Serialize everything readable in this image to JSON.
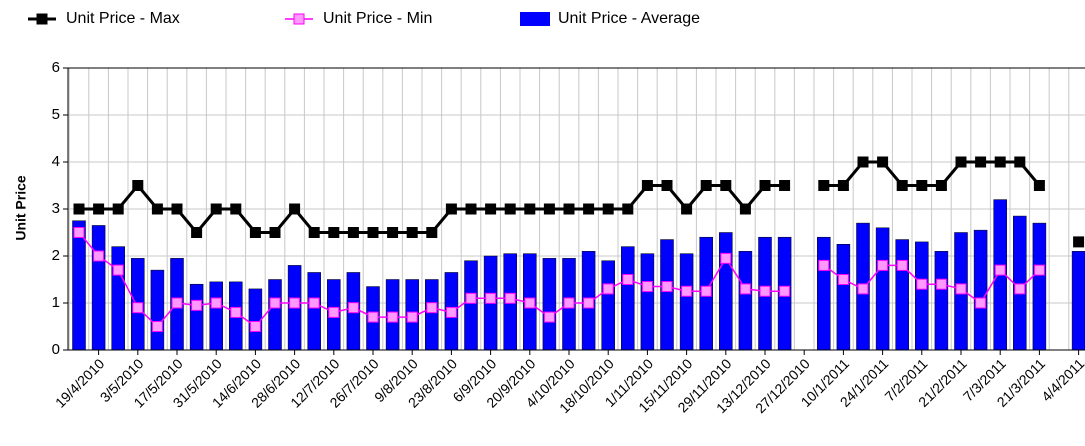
{
  "chart_data": {
    "type": "bar-line",
    "y_label": "Unit Price",
    "categories": [
      null,
      "19/4/2010",
      null,
      "3/5/2010",
      null,
      "17/5/2010",
      null,
      "31/5/2010",
      null,
      "14/6/2010",
      null,
      "28/6/2010",
      null,
      "12/7/2010",
      null,
      "26/7/2010",
      null,
      "9/8/2010",
      null,
      "23/8/2010",
      null,
      "6/9/2010",
      null,
      "20/9/2010",
      null,
      "4/10/2010",
      null,
      "18/10/2010",
      null,
      "1/11/2010",
      null,
      "15/11/2010",
      null,
      "29/11/2010",
      null,
      "13/12/2010",
      null,
      "27/12/2010",
      null,
      "10/1/2011",
      null,
      "24/1/2011",
      null,
      "7/2/2011",
      null,
      "21/2/2011",
      null,
      "7/3/2011",
      null,
      "21/3/2011",
      null,
      "4/4/2011"
    ],
    "series": [
      {
        "name": "Unit Price - Max",
        "kind": "line",
        "color": "#000000",
        "marker_fill": "#000000",
        "values": [
          3,
          3,
          3,
          3.5,
          3,
          3,
          2.5,
          3,
          3,
          2.5,
          2.5,
          3,
          2.5,
          2.5,
          2.5,
          2.5,
          2.5,
          2.5,
          2.5,
          3,
          3,
          3,
          3,
          3,
          3,
          3,
          3,
          3,
          3,
          3.5,
          3.5,
          3,
          3.5,
          3.5,
          3,
          3.5,
          3.5,
          null,
          3.5,
          3.5,
          4,
          4,
          3.5,
          3.5,
          3.5,
          4,
          4,
          4,
          4,
          3.5,
          null,
          2.3
        ]
      },
      {
        "name": "Unit Price - Min",
        "kind": "line",
        "color": "#ff00ff",
        "marker_fill": "#ff99ff",
        "values": [
          2.5,
          2,
          1.7,
          0.9,
          0.5,
          1,
          0.95,
          1,
          0.8,
          0.5,
          1,
          1,
          1,
          0.8,
          0.9,
          0.7,
          0.7,
          0.7,
          0.9,
          0.8,
          1.1,
          1.1,
          1.1,
          1,
          0.7,
          1,
          1,
          1.3,
          1.5,
          1.35,
          1.35,
          1.25,
          1.25,
          1.95,
          1.3,
          1.25,
          1.25,
          null,
          1.8,
          1.5,
          1.3,
          1.8,
          1.8,
          1.4,
          1.4,
          1.3,
          1,
          1.7,
          1.3,
          1.7,
          null,
          null
        ]
      },
      {
        "name": "Unit Price - Average",
        "kind": "bar",
        "color": "#0000ff",
        "values": [
          2.75,
          2.65,
          2.2,
          1.95,
          1.7,
          1.95,
          1.4,
          1.45,
          1.45,
          1.3,
          1.5,
          1.8,
          1.65,
          1.5,
          1.65,
          1.35,
          1.5,
          1.5,
          1.5,
          1.65,
          1.9,
          2,
          2.05,
          2.05,
          1.95,
          1.95,
          2.1,
          1.9,
          2.2,
          2.05,
          2.35,
          2.05,
          2.4,
          2.5,
          2.1,
          2.4,
          2.4,
          null,
          2.4,
          2.25,
          2.7,
          2.6,
          2.35,
          2.3,
          2.1,
          2.5,
          2.55,
          3.2,
          2.85,
          2.7,
          null,
          2.1
        ]
      }
    ],
    "ylim": [
      0,
      6
    ],
    "yticks": [
      0,
      1,
      2,
      3,
      4,
      5,
      6
    ],
    "grid": true
  }
}
